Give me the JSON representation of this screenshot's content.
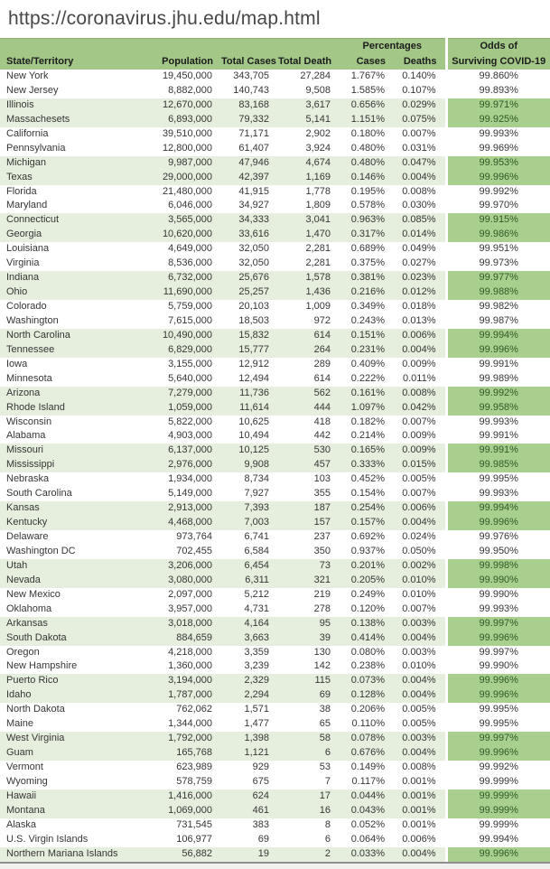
{
  "page": {
    "url_caption": "https://coronavirus.jhu.edu/map.html"
  },
  "colors": {
    "header_green": "#a3c787",
    "row_tint_green": "#e6efdd",
    "odds_highlight_green": "#a9cf8e",
    "odds_highlight_text": "#2d5a26",
    "body_text": "#363636",
    "url_text": "#474747"
  },
  "table": {
    "header": {
      "group_percentages": "Percentages",
      "group_odds_line1": "Odds of",
      "col_state": "State/Territory",
      "col_population": "Population",
      "col_total_cases": "Total Cases",
      "col_total_death": "Total Death",
      "col_cases": "Cases",
      "col_deaths": "Deaths",
      "col_surviving": "Surviving COVID-19"
    },
    "rows": [
      [
        "New York",
        "19,450,000",
        "343,705",
        "27,284",
        "1.767%",
        "0.140%",
        "99.860%",
        false
      ],
      [
        "New Jersey",
        "8,882,000",
        "140,743",
        "9,508",
        "1.585%",
        "0.107%",
        "99.893%",
        false
      ],
      [
        "Illinois",
        "12,670,000",
        "83,168",
        "3,617",
        "0.656%",
        "0.029%",
        "99.971%",
        true
      ],
      [
        "Massachesets",
        "6,893,000",
        "79,332",
        "5,141",
        "1.151%",
        "0.075%",
        "99.925%",
        true
      ],
      [
        "California",
        "39,510,000",
        "71,171",
        "2,902",
        "0.180%",
        "0.007%",
        "99.993%",
        false
      ],
      [
        "Pennsylvania",
        "12,800,000",
        "61,407",
        "3,924",
        "0.480%",
        "0.031%",
        "99.969%",
        false
      ],
      [
        "Michigan",
        "9,987,000",
        "47,946",
        "4,674",
        "0.480%",
        "0.047%",
        "99.953%",
        true
      ],
      [
        "Texas",
        "29,000,000",
        "42,397",
        "1,169",
        "0.146%",
        "0.004%",
        "99.996%",
        true
      ],
      [
        "Florida",
        "21,480,000",
        "41,915",
        "1,778",
        "0.195%",
        "0.008%",
        "99.992%",
        false
      ],
      [
        "Maryland",
        "6,046,000",
        "34,927",
        "1,809",
        "0.578%",
        "0.030%",
        "99.970%",
        false
      ],
      [
        "Connecticut",
        "3,565,000",
        "34,333",
        "3,041",
        "0.963%",
        "0.085%",
        "99.915%",
        true
      ],
      [
        "Georgia",
        "10,620,000",
        "33,616",
        "1,470",
        "0.317%",
        "0.014%",
        "99.986%",
        true
      ],
      [
        "Louisiana",
        "4,649,000",
        "32,050",
        "2,281",
        "0.689%",
        "0.049%",
        "99.951%",
        false
      ],
      [
        "Virginia",
        "8,536,000",
        "32,050",
        "2,281",
        "0.375%",
        "0.027%",
        "99.973%",
        false
      ],
      [
        "Indiana",
        "6,732,000",
        "25,676",
        "1,578",
        "0.381%",
        "0.023%",
        "99.977%",
        true
      ],
      [
        "Ohio",
        "11,690,000",
        "25,257",
        "1,436",
        "0.216%",
        "0.012%",
        "99.988%",
        true
      ],
      [
        "Colorado",
        "5,759,000",
        "20,103",
        "1,009",
        "0.349%",
        "0.018%",
        "99.982%",
        false
      ],
      [
        "Washington",
        "7,615,000",
        "18,503",
        "972",
        "0.243%",
        "0.013%",
        "99.987%",
        false
      ],
      [
        "North Carolina",
        "10,490,000",
        "15,832",
        "614",
        "0.151%",
        "0.006%",
        "99.994%",
        true
      ],
      [
        "Tennessee",
        "6,829,000",
        "15,777",
        "264",
        "0.231%",
        "0.004%",
        "99.996%",
        true
      ],
      [
        "Iowa",
        "3,155,000",
        "12,912",
        "289",
        "0.409%",
        "0.009%",
        "99.991%",
        false
      ],
      [
        "Minnesota",
        "5,640,000",
        "12,494",
        "614",
        "0.222%",
        "0.011%",
        "99.989%",
        false
      ],
      [
        "Arizona",
        "7,279,000",
        "11,736",
        "562",
        "0.161%",
        "0.008%",
        "99.992%",
        true
      ],
      [
        "Rhode Island",
        "1,059,000",
        "11,614",
        "444",
        "1.097%",
        "0.042%",
        "99.958%",
        true
      ],
      [
        "Wisconsin",
        "5,822,000",
        "10,625",
        "418",
        "0.182%",
        "0.007%",
        "99.993%",
        false
      ],
      [
        "Alabama",
        "4,903,000",
        "10,494",
        "442",
        "0.214%",
        "0.009%",
        "99.991%",
        false
      ],
      [
        "Missouri",
        "6,137,000",
        "10,125",
        "530",
        "0.165%",
        "0.009%",
        "99.991%",
        true
      ],
      [
        "Mississippi",
        "2,976,000",
        "9,908",
        "457",
        "0.333%",
        "0.015%",
        "99.985%",
        true
      ],
      [
        "Nebraska",
        "1,934,000",
        "8,734",
        "103",
        "0.452%",
        "0.005%",
        "99.995%",
        false
      ],
      [
        "South Carolina",
        "5,149,000",
        "7,927",
        "355",
        "0.154%",
        "0.007%",
        "99.993%",
        false
      ],
      [
        "Kansas",
        "2,913,000",
        "7,393",
        "187",
        "0.254%",
        "0.006%",
        "99.994%",
        true
      ],
      [
        "Kentucky",
        "4,468,000",
        "7,003",
        "157",
        "0.157%",
        "0.004%",
        "99.996%",
        true
      ],
      [
        "Delaware",
        "973,764",
        "6,741",
        "237",
        "0.692%",
        "0.024%",
        "99.976%",
        false
      ],
      [
        "Washington DC",
        "702,455",
        "6,584",
        "350",
        "0.937%",
        "0.050%",
        "99.950%",
        false
      ],
      [
        "Utah",
        "3,206,000",
        "6,454",
        "73",
        "0.201%",
        "0.002%",
        "99.998%",
        true
      ],
      [
        "Nevada",
        "3,080,000",
        "6,311",
        "321",
        "0.205%",
        "0.010%",
        "99.990%",
        true
      ],
      [
        "New Mexico",
        "2,097,000",
        "5,212",
        "219",
        "0.249%",
        "0.010%",
        "99.990%",
        false
      ],
      [
        "Oklahoma",
        "3,957,000",
        "4,731",
        "278",
        "0.120%",
        "0.007%",
        "99.993%",
        false
      ],
      [
        "Arkansas",
        "3,018,000",
        "4,164",
        "95",
        "0.138%",
        "0.003%",
        "99.997%",
        true
      ],
      [
        "South Dakota",
        "884,659",
        "3,663",
        "39",
        "0.414%",
        "0.004%",
        "99.996%",
        true
      ],
      [
        "Oregon",
        "4,218,000",
        "3,359",
        "130",
        "0.080%",
        "0.003%",
        "99.997%",
        false
      ],
      [
        "New Hampshire",
        "1,360,000",
        "3,239",
        "142",
        "0.238%",
        "0.010%",
        "99.990%",
        false
      ],
      [
        "Puerto Rico",
        "3,194,000",
        "2,329",
        "115",
        "0.073%",
        "0.004%",
        "99.996%",
        true
      ],
      [
        "Idaho",
        "1,787,000",
        "2,294",
        "69",
        "0.128%",
        "0.004%",
        "99.996%",
        true
      ],
      [
        "North Dakota",
        "762,062",
        "1,571",
        "38",
        "0.206%",
        "0.005%",
        "99.995%",
        false
      ],
      [
        "Maine",
        "1,344,000",
        "1,477",
        "65",
        "0.110%",
        "0.005%",
        "99.995%",
        false
      ],
      [
        "West Virginia",
        "1,792,000",
        "1,398",
        "58",
        "0.078%",
        "0.003%",
        "99.997%",
        true
      ],
      [
        "Guam",
        "165,768",
        "1,121",
        "6",
        "0.676%",
        "0.004%",
        "99.996%",
        true
      ],
      [
        "Vermont",
        "623,989",
        "929",
        "53",
        "0.149%",
        "0.008%",
        "99.992%",
        false
      ],
      [
        "Wyoming",
        "578,759",
        "675",
        "7",
        "0.117%",
        "0.001%",
        "99.999%",
        false
      ],
      [
        "Hawaii",
        "1,416,000",
        "624",
        "17",
        "0.044%",
        "0.001%",
        "99.999%",
        true
      ],
      [
        "Montana",
        "1,069,000",
        "461",
        "16",
        "0.043%",
        "0.001%",
        "99.999%",
        true
      ],
      [
        "Alaska",
        "731,545",
        "383",
        "8",
        "0.052%",
        "0.001%",
        "99.999%",
        false
      ],
      [
        "U.S. Virgin Islands",
        "106,977",
        "69",
        "6",
        "0.064%",
        "0.006%",
        "99.994%",
        false
      ],
      [
        "Northern Mariana Islands",
        "56,882",
        "19",
        "2",
        "0.033%",
        "0.004%",
        "99.996%",
        true
      ]
    ]
  }
}
